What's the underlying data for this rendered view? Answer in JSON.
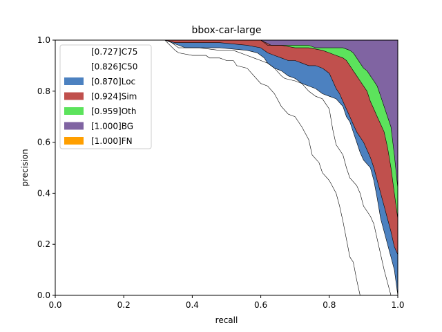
{
  "chart_data": {
    "type": "area",
    "title": "bbox-car-large",
    "xlabel": "recall",
    "ylabel": "precision",
    "xlim": [
      0,
      1
    ],
    "ylim": [
      0,
      1
    ],
    "xticks": [
      "0.0",
      "0.2",
      "0.4",
      "0.6",
      "0.8",
      "1.0"
    ],
    "yticks": [
      "0.0",
      "0.2",
      "0.4",
      "0.6",
      "0.8",
      "1.0"
    ],
    "grid": false,
    "legend_position": "top-left",
    "series": [
      {
        "name": "[0.727]C75",
        "color": "#ffffff",
        "points": [
          [
            0.0,
            1.0
          ],
          [
            0.32,
            1.0
          ],
          [
            0.35,
            0.96
          ],
          [
            0.36,
            0.95
          ],
          [
            0.4,
            0.94
          ],
          [
            0.44,
            0.94
          ],
          [
            0.45,
            0.93
          ],
          [
            0.48,
            0.93
          ],
          [
            0.5,
            0.92
          ],
          [
            0.52,
            0.92
          ],
          [
            0.53,
            0.9
          ],
          [
            0.56,
            0.89
          ],
          [
            0.58,
            0.86
          ],
          [
            0.6,
            0.83
          ],
          [
            0.62,
            0.82
          ],
          [
            0.64,
            0.79
          ],
          [
            0.66,
            0.74
          ],
          [
            0.68,
            0.71
          ],
          [
            0.7,
            0.7
          ],
          [
            0.72,
            0.66
          ],
          [
            0.74,
            0.61
          ],
          [
            0.75,
            0.55
          ],
          [
            0.77,
            0.52
          ],
          [
            0.78,
            0.48
          ],
          [
            0.8,
            0.45
          ],
          [
            0.82,
            0.4
          ],
          [
            0.83,
            0.35
          ],
          [
            0.84,
            0.29
          ],
          [
            0.85,
            0.22
          ],
          [
            0.86,
            0.15
          ],
          [
            0.87,
            0.13
          ],
          [
            0.88,
            0.06
          ],
          [
            0.89,
            0.0
          ]
        ]
      },
      {
        "name": "[0.826]C50",
        "color": "#ffffff",
        "points": [
          [
            0.0,
            1.0
          ],
          [
            0.33,
            1.0
          ],
          [
            0.35,
            0.98
          ],
          [
            0.36,
            0.97
          ],
          [
            0.42,
            0.97
          ],
          [
            0.48,
            0.96
          ],
          [
            0.52,
            0.96
          ],
          [
            0.56,
            0.94
          ],
          [
            0.58,
            0.93
          ],
          [
            0.6,
            0.92
          ],
          [
            0.62,
            0.91
          ],
          [
            0.64,
            0.89
          ],
          [
            0.66,
            0.86
          ],
          [
            0.67,
            0.85
          ],
          [
            0.7,
            0.84
          ],
          [
            0.72,
            0.83
          ],
          [
            0.74,
            0.8
          ],
          [
            0.76,
            0.78
          ],
          [
            0.78,
            0.77
          ],
          [
            0.79,
            0.75
          ],
          [
            0.8,
            0.73
          ],
          [
            0.81,
            0.65
          ],
          [
            0.82,
            0.59
          ],
          [
            0.84,
            0.55
          ],
          [
            0.85,
            0.5
          ],
          [
            0.86,
            0.46
          ],
          [
            0.88,
            0.43
          ],
          [
            0.89,
            0.4
          ],
          [
            0.9,
            0.35
          ],
          [
            0.92,
            0.31
          ],
          [
            0.93,
            0.28
          ],
          [
            0.94,
            0.22
          ],
          [
            0.95,
            0.16
          ],
          [
            0.96,
            0.1
          ],
          [
            0.97,
            0.05
          ],
          [
            0.98,
            0.0
          ]
        ]
      },
      {
        "name": "[0.870]Loc",
        "color": "#4c81c0",
        "points": [
          [
            0.0,
            1.0
          ],
          [
            0.32,
            1.0
          ],
          [
            0.36,
            0.98
          ],
          [
            0.38,
            0.97
          ],
          [
            0.48,
            0.97
          ],
          [
            0.56,
            0.96
          ],
          [
            0.59,
            0.95
          ],
          [
            0.61,
            0.93
          ],
          [
            0.62,
            0.91
          ],
          [
            0.64,
            0.89
          ],
          [
            0.66,
            0.88
          ],
          [
            0.68,
            0.86
          ],
          [
            0.7,
            0.85
          ],
          [
            0.72,
            0.83
          ],
          [
            0.74,
            0.82
          ],
          [
            0.76,
            0.81
          ],
          [
            0.78,
            0.79
          ],
          [
            0.8,
            0.78
          ],
          [
            0.82,
            0.77
          ],
          [
            0.84,
            0.74
          ],
          [
            0.85,
            0.7
          ],
          [
            0.86,
            0.68
          ],
          [
            0.87,
            0.64
          ],
          [
            0.88,
            0.6
          ],
          [
            0.89,
            0.56
          ],
          [
            0.9,
            0.53
          ],
          [
            0.92,
            0.5
          ],
          [
            0.93,
            0.45
          ],
          [
            0.94,
            0.38
          ],
          [
            0.95,
            0.3
          ],
          [
            0.96,
            0.25
          ],
          [
            0.97,
            0.2
          ],
          [
            0.98,
            0.15
          ],
          [
            0.99,
            0.1
          ],
          [
            1.0,
            0.0
          ]
        ]
      },
      {
        "name": "[0.924]Sim",
        "color": "#c0504d",
        "points": [
          [
            0.0,
            1.0
          ],
          [
            0.32,
            1.0
          ],
          [
            0.35,
            0.99
          ],
          [
            0.4,
            0.99
          ],
          [
            0.48,
            0.99
          ],
          [
            0.56,
            0.98
          ],
          [
            0.6,
            0.97
          ],
          [
            0.62,
            0.95
          ],
          [
            0.64,
            0.94
          ],
          [
            0.66,
            0.93
          ],
          [
            0.68,
            0.92
          ],
          [
            0.7,
            0.92
          ],
          [
            0.72,
            0.91
          ],
          [
            0.74,
            0.9
          ],
          [
            0.76,
            0.9
          ],
          [
            0.78,
            0.89
          ],
          [
            0.8,
            0.87
          ],
          [
            0.81,
            0.84
          ],
          [
            0.82,
            0.81
          ],
          [
            0.83,
            0.79
          ],
          [
            0.84,
            0.76
          ],
          [
            0.85,
            0.73
          ],
          [
            0.86,
            0.7
          ],
          [
            0.87,
            0.67
          ],
          [
            0.88,
            0.64
          ],
          [
            0.89,
            0.62
          ],
          [
            0.9,
            0.6
          ],
          [
            0.91,
            0.57
          ],
          [
            0.92,
            0.54
          ],
          [
            0.93,
            0.5
          ],
          [
            0.94,
            0.45
          ],
          [
            0.95,
            0.4
          ],
          [
            0.96,
            0.35
          ],
          [
            0.97,
            0.3
          ],
          [
            0.98,
            0.25
          ],
          [
            0.99,
            0.19
          ],
          [
            1.0,
            0.16
          ]
        ]
      },
      {
        "name": "[0.959]Oth",
        "color": "#5ce35c",
        "points": [
          [
            0.0,
            1.0
          ],
          [
            0.33,
            1.0
          ],
          [
            0.4,
            1.0
          ],
          [
            0.5,
            1.0
          ],
          [
            0.6,
            1.0
          ],
          [
            0.63,
            0.98
          ],
          [
            0.66,
            0.98
          ],
          [
            0.7,
            0.97
          ],
          [
            0.74,
            0.97
          ],
          [
            0.78,
            0.96
          ],
          [
            0.8,
            0.95
          ],
          [
            0.82,
            0.94
          ],
          [
            0.84,
            0.93
          ],
          [
            0.85,
            0.92
          ],
          [
            0.86,
            0.9
          ],
          [
            0.87,
            0.88
          ],
          [
            0.88,
            0.86
          ],
          [
            0.89,
            0.84
          ],
          [
            0.9,
            0.82
          ],
          [
            0.91,
            0.8
          ],
          [
            0.92,
            0.76
          ],
          [
            0.93,
            0.73
          ],
          [
            0.94,
            0.7
          ],
          [
            0.95,
            0.67
          ],
          [
            0.96,
            0.64
          ],
          [
            0.97,
            0.58
          ],
          [
            0.98,
            0.5
          ],
          [
            0.99,
            0.4
          ],
          [
            1.0,
            0.3
          ]
        ]
      },
      {
        "name": "[1.000]BG",
        "color": "#8064a2",
        "points": [
          [
            0.0,
            1.0
          ],
          [
            1.0,
            1.0
          ]
        ]
      },
      {
        "name": "[1.000]FN",
        "color": "#ff9f00",
        "points": [
          [
            0.0,
            1.0
          ],
          [
            1.0,
            1.0
          ]
        ]
      }
    ],
    "curves": {
      "Oth_top_to_BG": [
        [
          0.6,
          1.0
        ],
        [
          0.62,
          0.98
        ],
        [
          0.7,
          0.98
        ],
        [
          0.74,
          0.98
        ],
        [
          0.76,
          0.97
        ],
        [
          0.8,
          0.97
        ],
        [
          0.84,
          0.97
        ],
        [
          0.86,
          0.96
        ],
        [
          0.87,
          0.95
        ],
        [
          0.88,
          0.93
        ],
        [
          0.89,
          0.91
        ],
        [
          0.9,
          0.89
        ],
        [
          0.91,
          0.88
        ],
        [
          0.92,
          0.86
        ],
        [
          0.93,
          0.84
        ],
        [
          0.94,
          0.82
        ],
        [
          0.95,
          0.78
        ],
        [
          0.96,
          0.74
        ],
        [
          0.97,
          0.7
        ],
        [
          0.98,
          0.66
        ],
        [
          0.99,
          0.55
        ],
        [
          1.0,
          0.42
        ]
      ]
    }
  }
}
